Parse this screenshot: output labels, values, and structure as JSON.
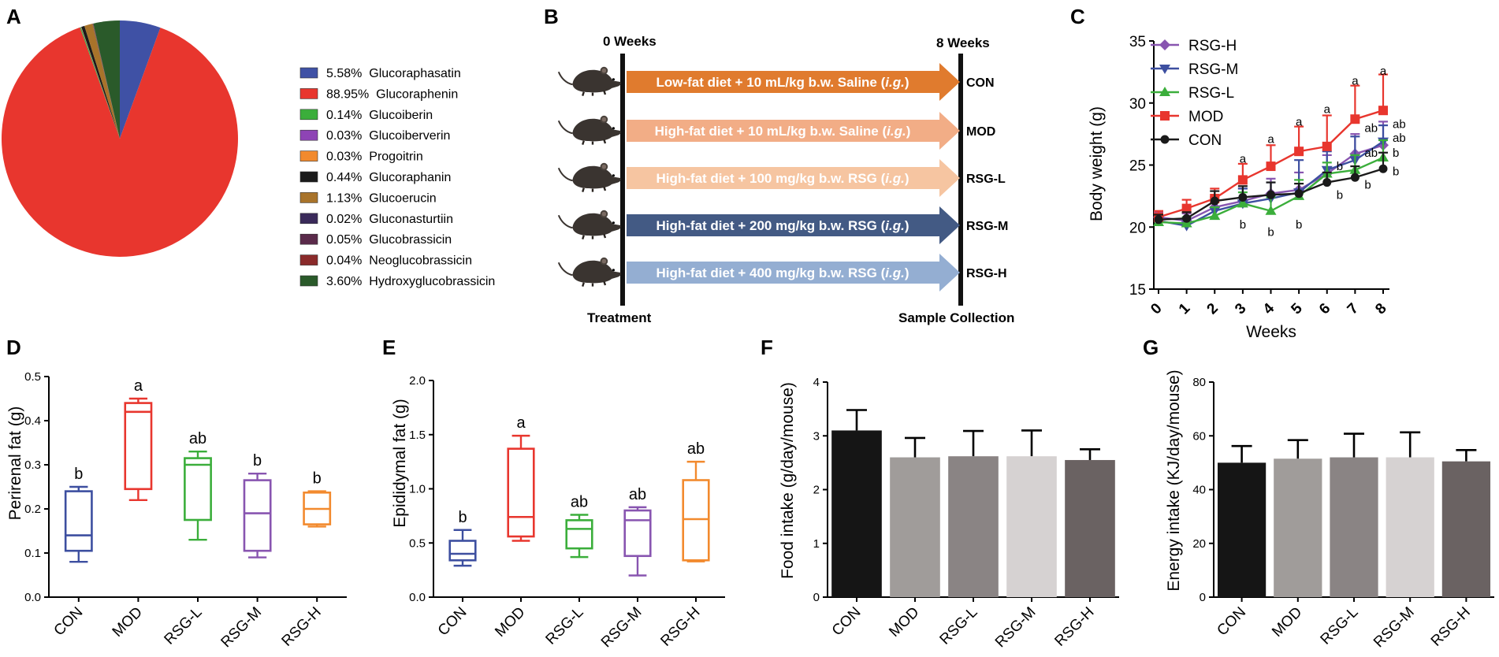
{
  "panels": {
    "A": "A",
    "B": "B",
    "C": "C",
    "D": "D",
    "E": "E",
    "F": "F",
    "G": "G"
  },
  "chart_data": [
    {
      "panel": "A",
      "type": "pie",
      "slices": [
        {
          "name": "Glucoraphasatin",
          "value": 5.58,
          "label": "5.58%",
          "color": "#3f51a5"
        },
        {
          "name": "Glucoraphenin",
          "value": 88.95,
          "label": "88.95%",
          "color": "#e8362e"
        },
        {
          "name": "Glucoiberin",
          "value": 0.14,
          "label": "0.14%",
          "color": "#3bae3b"
        },
        {
          "name": "Glucoiberverin",
          "value": 0.03,
          "label": "0.03%",
          "color": "#8e44b5"
        },
        {
          "name": "Progoitrin",
          "value": 0.03,
          "label": "0.03%",
          "color": "#f28a2e"
        },
        {
          "name": "Glucoraphanin",
          "value": 0.44,
          "label": "0.44%",
          "color": "#1a1a1a"
        },
        {
          "name": "Glucoerucin",
          "value": 1.13,
          "label": "1.13%",
          "color": "#a8732a"
        },
        {
          "name": "Gluconasturtiin",
          "value": 0.02,
          "label": "0.02%",
          "color": "#3a2a5a"
        },
        {
          "name": "Glucobrassicin",
          "value": 0.05,
          "label": "0.05%",
          "color": "#5a2a4a"
        },
        {
          "name": "Neoglucobrassicin",
          "value": 0.04,
          "label": "0.04%",
          "color": "#8a2a2a"
        },
        {
          "name": "Hydroxyglucobrassicin",
          "value": 3.6,
          "label": "3.60%",
          "color": "#2a5a2a"
        }
      ]
    },
    {
      "panel": "B",
      "type": "diagram",
      "start_label": "0 Weeks",
      "end_label": "8 Weeks",
      "left_caption": "Treatment",
      "right_caption": "Sample Collection",
      "groups": [
        {
          "text": "Low-fat diet + 10 mL/kg b.w. Saline ",
          "route": "i.g.",
          "group": "CON",
          "color": "#e07b2e"
        },
        {
          "text": "High-fat diet + 10 mL/kg b.w. Saline ",
          "route": "i.g.",
          "group": "MOD",
          "color": "#f2ad86"
        },
        {
          "text": "High-fat diet + 100 mg/kg b.w. RSG ",
          "route": "i.g.",
          "group": "RSG-L",
          "color": "#f6c5a1"
        },
        {
          "text": "High-fat diet + 200 mg/kg b.w. RSG ",
          "route": "i.g.",
          "group": "RSG-M",
          "color": "#435a84"
        },
        {
          "text": "High-fat diet + 400 mg/kg b.w. RSG ",
          "route": "i.g.",
          "group": "RSG-H",
          "color": "#94aed2"
        }
      ]
    },
    {
      "panel": "C",
      "type": "line",
      "x": [
        0,
        1,
        2,
        3,
        4,
        5,
        6,
        7,
        8
      ],
      "xlabel": "Weeks",
      "ylabel": "Body weight (g)",
      "ylim": [
        15,
        35
      ],
      "yticks": [
        15,
        20,
        25,
        30,
        35
      ],
      "series": [
        {
          "name": "RSG-H",
          "color": "#8855b0",
          "marker": "diamond",
          "values": [
            20.8,
            20.5,
            21.6,
            22.1,
            22.7,
            23.0,
            24.3,
            25.9,
            26.6
          ],
          "err": [
            0.4,
            0.6,
            0.8,
            1.0,
            1.2,
            1.4,
            1.5,
            1.6,
            1.9
          ]
        },
        {
          "name": "RSG-M",
          "color": "#3d4fa0",
          "marker": "triangle-down",
          "values": [
            20.5,
            20.1,
            21.3,
            21.9,
            22.3,
            22.8,
            24.6,
            25.4,
            26.9
          ],
          "err": [
            0.4,
            0.5,
            0.9,
            1.2,
            1.3,
            2.6,
            1.5,
            1.9,
            1.3
          ]
        },
        {
          "name": "RSG-L",
          "color": "#3bae3b",
          "marker": "triangle-up",
          "values": [
            20.4,
            20.3,
            20.9,
            21.9,
            21.3,
            22.5,
            24.3,
            24.6,
            25.6
          ],
          "err": [
            0.4,
            0.5,
            0.7,
            0.9,
            1.1,
            1.3,
            0.9,
            1.2,
            1.4
          ]
        },
        {
          "name": "MOD",
          "color": "#e8362e",
          "marker": "square",
          "values": [
            20.8,
            21.5,
            22.3,
            23.8,
            24.9,
            26.1,
            26.5,
            28.7,
            29.4
          ],
          "err": [
            0.5,
            0.7,
            0.8,
            1.3,
            1.7,
            2.0,
            2.5,
            2.7,
            2.9
          ]
        },
        {
          "name": "CON",
          "color": "#1a1a1a",
          "marker": "circle",
          "values": [
            20.6,
            20.7,
            22.1,
            22.4,
            22.6,
            22.7,
            23.6,
            24.0,
            24.7
          ],
          "err": [
            0.4,
            0.5,
            0.8,
            0.9,
            1.0,
            0.8,
            0.8,
            0.9,
            1.3
          ]
        }
      ],
      "annotations": [
        {
          "x": 3,
          "y": 25.5,
          "text": "a"
        },
        {
          "x": 3,
          "y": 20.2,
          "text": "b"
        },
        {
          "x": 4,
          "y": 27.1,
          "text": "a"
        },
        {
          "x": 4,
          "y": 19.6,
          "text": "b"
        },
        {
          "x": 5,
          "y": 28.5,
          "text": "a"
        },
        {
          "x": 5,
          "y": 20.2,
          "text": "b"
        },
        {
          "x": 6,
          "y": 29.5,
          "text": "a"
        },
        {
          "x": 6,
          "y": 24.9,
          "text": "b"
        },
        {
          "x": 6,
          "y": 22.6,
          "text": "b"
        },
        {
          "x": 7,
          "y": 31.8,
          "text": "a"
        },
        {
          "x": 7,
          "y": 28.0,
          "text": "ab"
        },
        {
          "x": 7,
          "y": 26.0,
          "text": "ab"
        },
        {
          "x": 7,
          "y": 23.4,
          "text": "b"
        },
        {
          "x": 8,
          "y": 32.6,
          "text": "a"
        },
        {
          "x": 8,
          "y": 28.3,
          "text": "ab"
        },
        {
          "x": 8,
          "y": 27.2,
          "text": "ab"
        },
        {
          "x": 8,
          "y": 26.0,
          "text": "b"
        },
        {
          "x": 8,
          "y": 24.5,
          "text": "b"
        }
      ]
    },
    {
      "panel": "D",
      "type": "box",
      "ylabel": "Perirenal fat (g)",
      "ylim": [
        0,
        0.5
      ],
      "yticks": [
        "0.0",
        "0.1",
        "0.2",
        "0.3",
        "0.4",
        "0.5"
      ],
      "categories": [
        "CON",
        "MOD",
        "RSG-L",
        "RSG-M",
        "RSG-H"
      ],
      "colors": [
        "#3d4fa0",
        "#e8362e",
        "#3bae3b",
        "#8855b0",
        "#f28a2e"
      ],
      "boxes": [
        {
          "min": 0.08,
          "q1": 0.105,
          "median": 0.14,
          "q3": 0.24,
          "max": 0.25,
          "sig": "b"
        },
        {
          "min": 0.22,
          "q1": 0.245,
          "median": 0.42,
          "q3": 0.44,
          "max": 0.45,
          "sig": "a"
        },
        {
          "min": 0.13,
          "q1": 0.175,
          "median": 0.3,
          "q3": 0.315,
          "max": 0.33,
          "sig": "ab"
        },
        {
          "min": 0.09,
          "q1": 0.105,
          "median": 0.19,
          "q3": 0.265,
          "max": 0.28,
          "sig": "b"
        },
        {
          "min": 0.16,
          "q1": 0.165,
          "median": 0.2,
          "q3": 0.237,
          "max": 0.24,
          "sig": "b"
        }
      ]
    },
    {
      "panel": "E",
      "type": "box",
      "ylabel": "Epididymal fat (g)",
      "ylim": [
        0,
        2.0
      ],
      "yticks": [
        "0.0",
        "0.5",
        "1.0",
        "1.5",
        "2.0"
      ],
      "categories": [
        "CON",
        "MOD",
        "RSG-L",
        "RSG-M",
        "RSG-H"
      ],
      "colors": [
        "#3d4fa0",
        "#e8362e",
        "#3bae3b",
        "#8855b0",
        "#f28a2e"
      ],
      "boxes": [
        {
          "min": 0.29,
          "q1": 0.34,
          "median": 0.4,
          "q3": 0.52,
          "max": 0.62,
          "sig": "b"
        },
        {
          "min": 0.52,
          "q1": 0.56,
          "median": 0.74,
          "q3": 1.37,
          "max": 1.49,
          "sig": "a"
        },
        {
          "min": 0.37,
          "q1": 0.45,
          "median": 0.63,
          "q3": 0.71,
          "max": 0.76,
          "sig": "ab"
        },
        {
          "min": 0.2,
          "q1": 0.38,
          "median": 0.71,
          "q3": 0.8,
          "max": 0.83,
          "sig": "ab"
        },
        {
          "min": 0.33,
          "q1": 0.34,
          "median": 0.72,
          "q3": 1.08,
          "max": 1.25,
          "sig": "ab"
        }
      ]
    },
    {
      "panel": "F",
      "type": "bar",
      "ylabel": "Food intake (g/day/mouse)",
      "ylim": [
        0,
        4
      ],
      "yticks": [
        "0",
        "1",
        "2",
        "3",
        "4"
      ],
      "categories": [
        "CON",
        "MOD",
        "RSG-L",
        "RSG-M",
        "RSG-H"
      ],
      "colors": [
        "#151515",
        "#a09c9a",
        "#8a8484",
        "#d6d2d2",
        "#6a6262"
      ],
      "values": [
        3.1,
        2.6,
        2.62,
        2.62,
        2.55
      ],
      "err": [
        0.38,
        0.36,
        0.47,
        0.48,
        0.2
      ]
    },
    {
      "panel": "G",
      "type": "bar",
      "ylabel": "Energy intake (KJ/day/mouse)",
      "ylim": [
        0,
        80
      ],
      "yticks": [
        "0",
        "20",
        "40",
        "60",
        "80"
      ],
      "categories": [
        "CON",
        "MOD",
        "RSG-L",
        "RSG-M",
        "RSG-H"
      ],
      "colors": [
        "#151515",
        "#a09c9a",
        "#8a8484",
        "#d6d2d2",
        "#6a6262"
      ],
      "values": [
        50,
        51.5,
        52,
        52,
        50.5
      ],
      "err": [
        6.2,
        6.9,
        8.8,
        9.3,
        4.2
      ]
    }
  ]
}
